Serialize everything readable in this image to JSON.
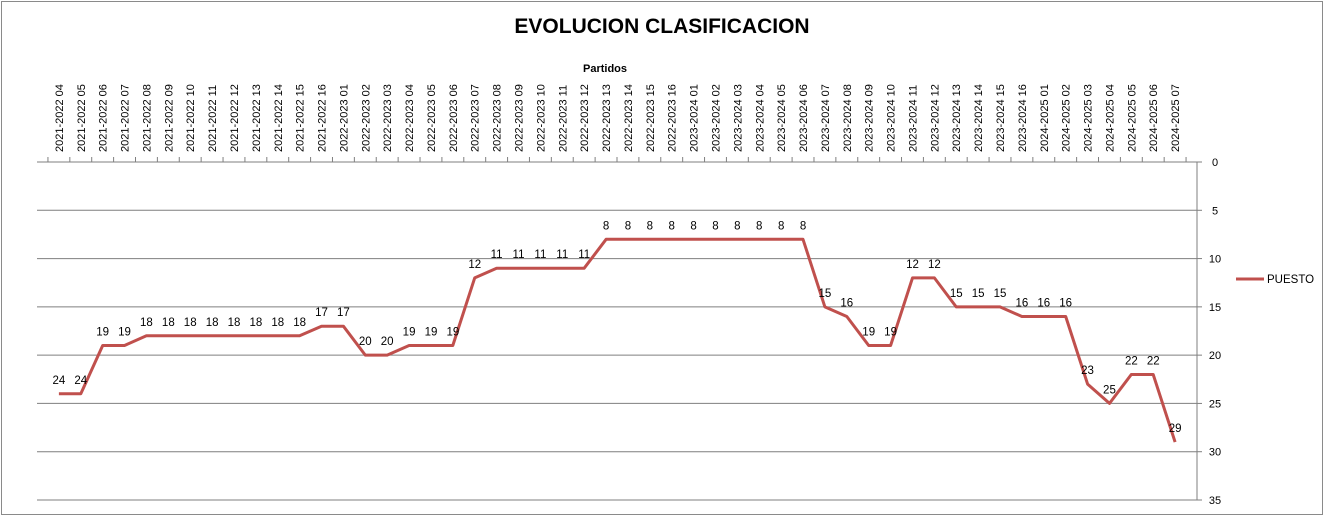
{
  "chart_data": {
    "type": "line",
    "title": "EVOLUCION CLASIFICACION",
    "xlabel": "Partidos",
    "ylabel": "",
    "ylim": [
      0,
      35
    ],
    "y_inverted": true,
    "y_ticks": [
      0,
      5,
      10,
      15,
      20,
      25,
      30,
      35
    ],
    "y_axis_side": "right",
    "x_axis_position": "top",
    "grid": true,
    "legend_position": "right",
    "categories": [
      "2021-2022 04",
      "2021-2022 05",
      "2021-2022 06",
      "2021-2022 07",
      "2021-2022 08",
      "2021-2022 09",
      "2021-2022 10",
      "2021-2022 11",
      "2021-2022 12",
      "2021-2022 13",
      "2021-2022 14",
      "2021-2022 15",
      "2021-2022 16",
      "2022-2023 01",
      "2022-2023 02",
      "2022-2023 03",
      "2022-2023 04",
      "2022-2023 05",
      "2022-2023 06",
      "2022-2023 07",
      "2022-2023 08",
      "2022-2023 09",
      "2022-2023 10",
      "2022-2023 11",
      "2022-2023 12",
      "2022-2023 13",
      "2022-2023 14",
      "2022-2023 15",
      "2022-2023 16",
      "2023-2024 01",
      "2023-2024 02",
      "2023-2024 03",
      "2023-2024 04",
      "2023-2024 05",
      "2023-2024 06",
      "2023-2024 07",
      "2023-2024 08",
      "2023-2024 09",
      "2023-2024 10",
      "2023-2024 11",
      "2023-2024 12",
      "2023-2024 13",
      "2023-2024 14",
      "2023-2024 15",
      "2023-2024 16",
      "2024-2025 01",
      "2024-2025 02",
      "2024-2025 03",
      "2024-2025 04",
      "2024-2025 05",
      "2024-2025 06",
      "2024-2025 07"
    ],
    "series": [
      {
        "name": "PUESTO",
        "color": "#c0504d",
        "values": [
          24,
          24,
          19,
          19,
          18,
          18,
          18,
          18,
          18,
          18,
          18,
          18,
          17,
          17,
          20,
          20,
          19,
          19,
          19,
          12,
          11,
          11,
          11,
          11,
          11,
          8,
          8,
          8,
          8,
          8,
          8,
          8,
          8,
          8,
          8,
          15,
          16,
          19,
          19,
          12,
          12,
          15,
          15,
          15,
          16,
          16,
          16,
          23,
          25,
          22,
          22,
          29
        ]
      }
    ]
  }
}
